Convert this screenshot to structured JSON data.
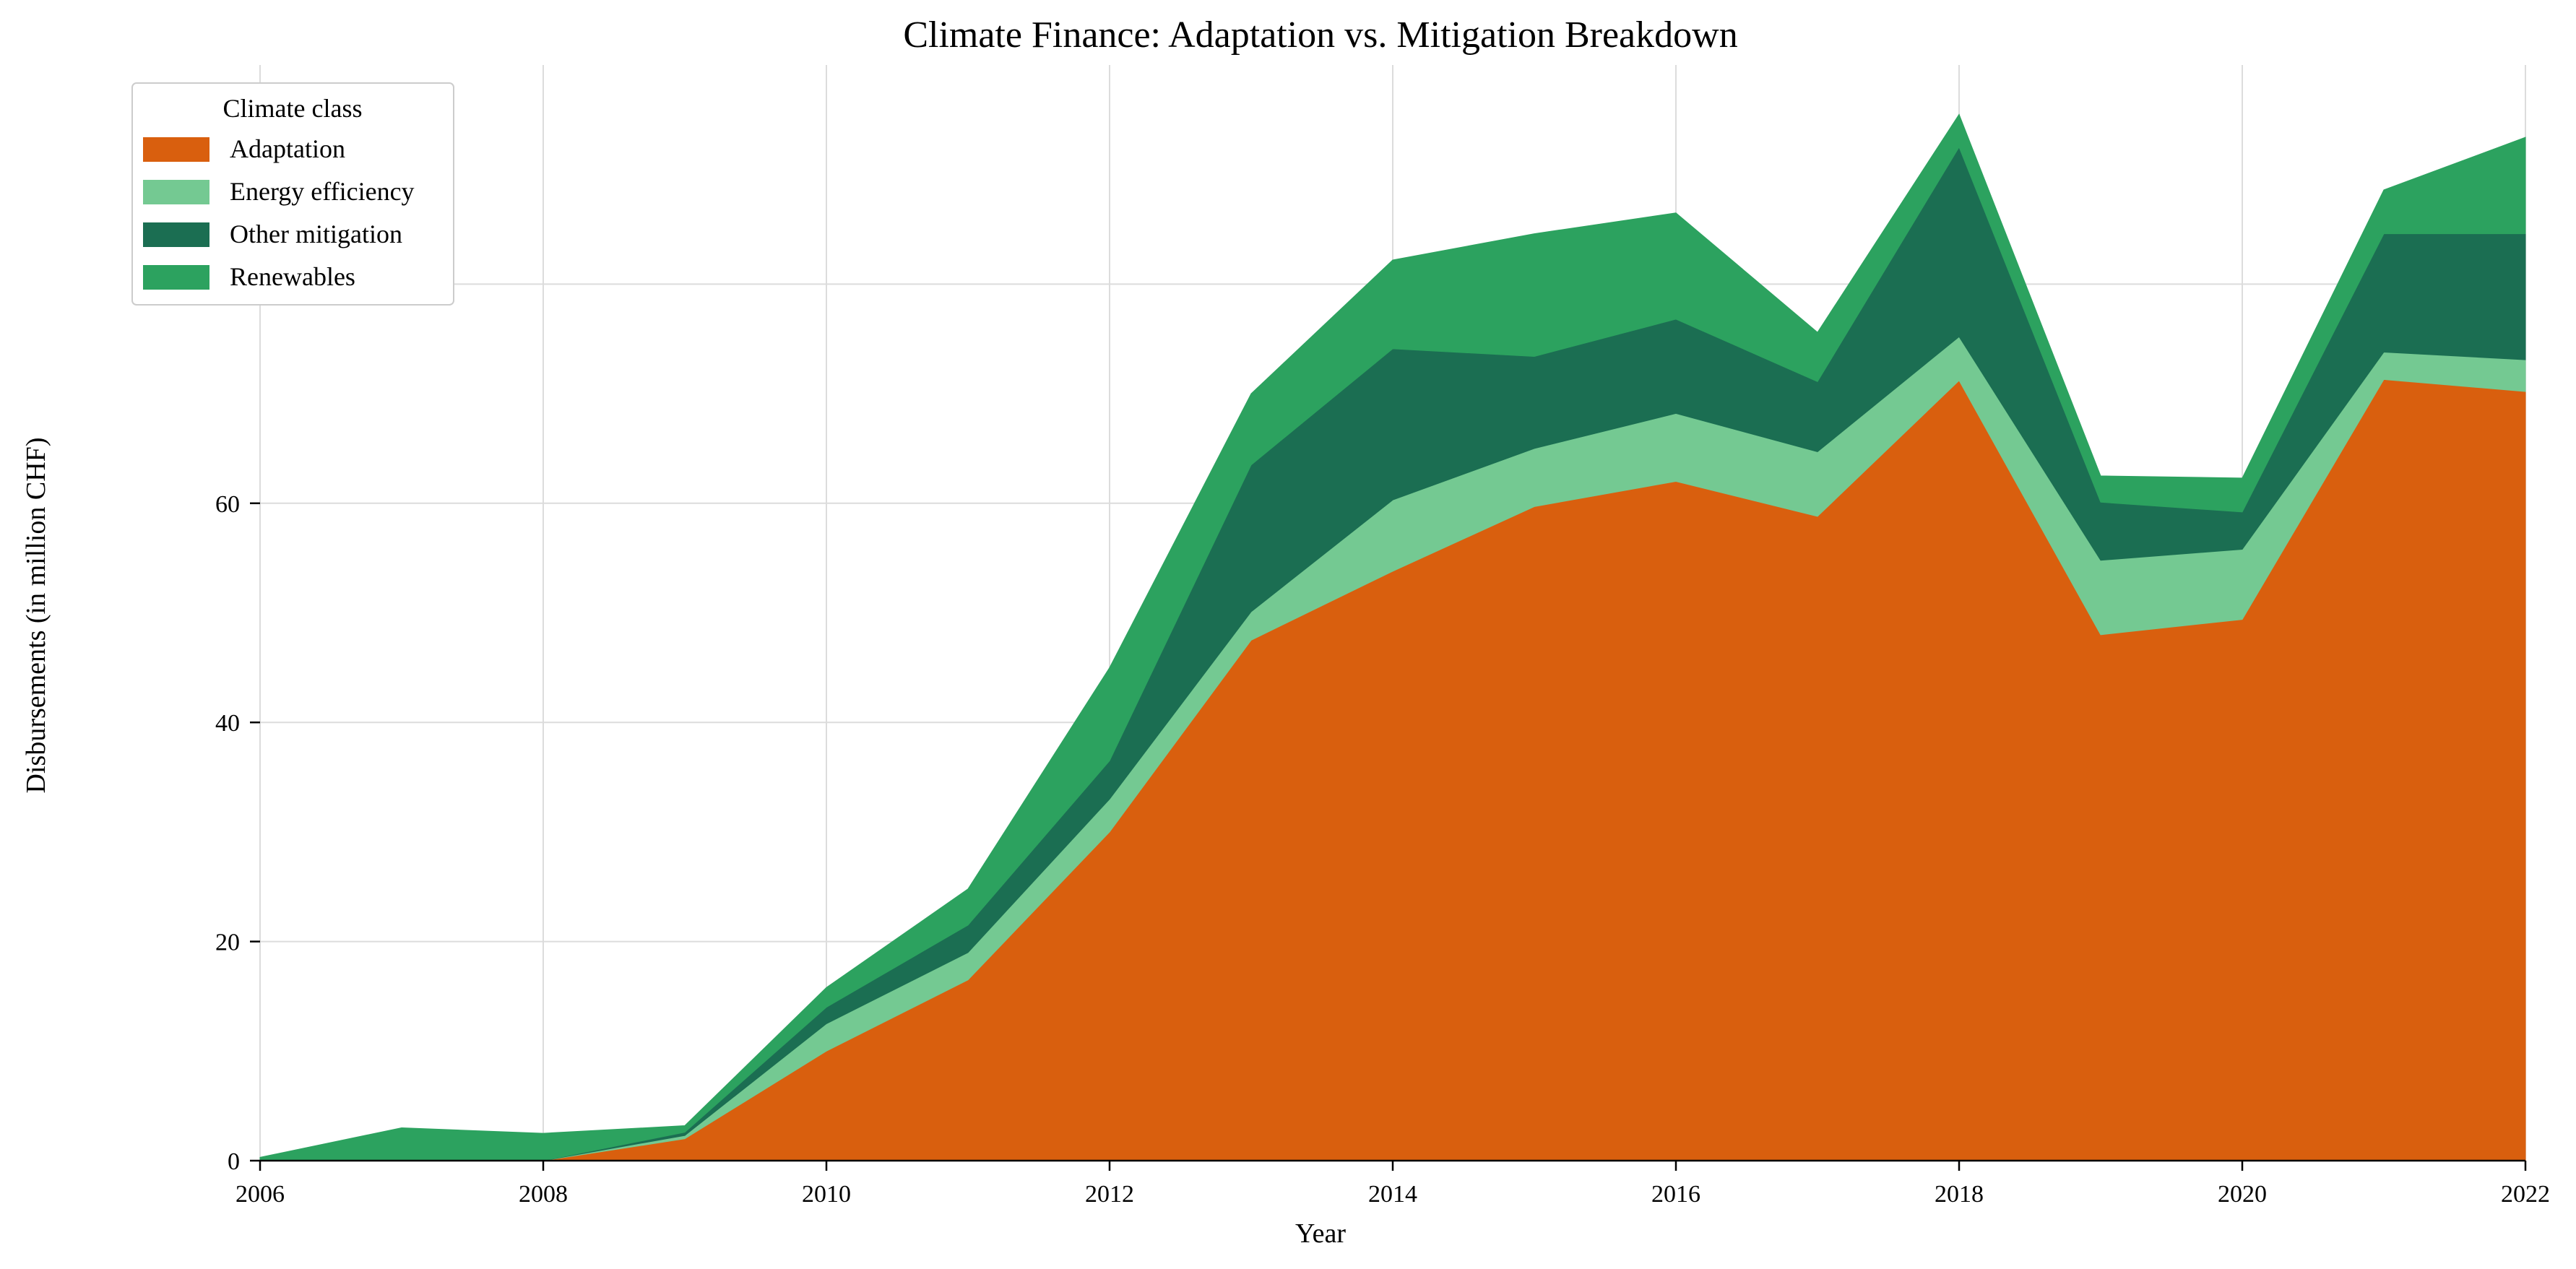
{
  "chart_data": {
    "type": "area",
    "stacked": true,
    "title": "Climate Finance: Adaptation vs. Mitigation Breakdown",
    "xlabel": "Year",
    "ylabel": "Disbursements (in million CHF)",
    "x": [
      2006,
      2007,
      2008,
      2009,
      2010,
      2011,
      2012,
      2013,
      2014,
      2015,
      2016,
      2017,
      2018,
      2019,
      2020,
      2021,
      2022
    ],
    "xlim": [
      2006,
      2022
    ],
    "ylim": [
      0,
      100
    ],
    "xticks": [
      "2006",
      "2008",
      "2010",
      "2012",
      "2014",
      "2016",
      "2018",
      "2020",
      "2022"
    ],
    "yticks": [
      "0",
      "20",
      "40",
      "60",
      "80"
    ],
    "grid": true,
    "legend": {
      "title": "Climate class",
      "position": "top-left"
    },
    "series": [
      {
        "name": "Adaptation",
        "color": "#d95f0e",
        "values": [
          0.0,
          0.0,
          0.0,
          2.0,
          10.0,
          16.5,
          30.0,
          47.5,
          53.8,
          59.7,
          62.0,
          58.8,
          71.2,
          48.0,
          49.4,
          71.3,
          70.2
        ]
      },
      {
        "name": "Energy efficiency",
        "color": "#74c992",
        "values": [
          0.0,
          0.0,
          0.0,
          0.3,
          2.5,
          2.5,
          3.0,
          2.6,
          6.5,
          5.3,
          6.2,
          5.9,
          4.0,
          6.8,
          6.4,
          2.5,
          2.9
        ]
      },
      {
        "name": "Other mitigation",
        "color": "#1b6e52",
        "values": [
          0.0,
          0.0,
          0.0,
          0.3,
          1.5,
          2.5,
          3.5,
          13.4,
          13.8,
          8.4,
          8.6,
          6.4,
          17.3,
          5.3,
          3.4,
          10.8,
          11.5
        ]
      },
      {
        "name": "Renewables",
        "color": "#2ca25f",
        "values": [
          0.3,
          3.0,
          2.5,
          0.6,
          1.8,
          3.3,
          8.5,
          6.5,
          8.1,
          11.2,
          9.7,
          4.5,
          3.0,
          2.4,
          3.1,
          4.0,
          8.8
        ]
      }
    ]
  }
}
